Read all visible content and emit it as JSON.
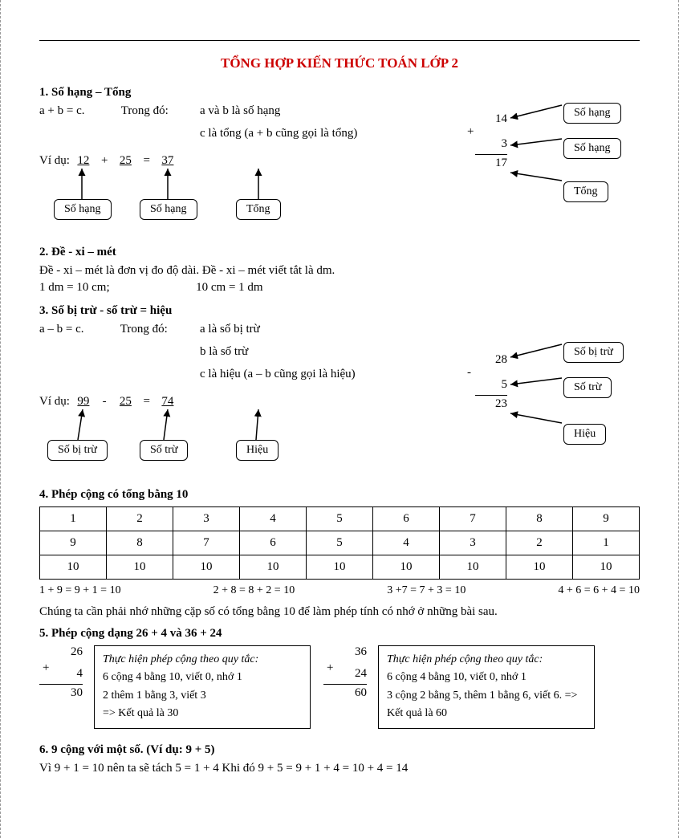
{
  "title": "TỔNG HỢP KIẾN THỨC TOÁN LỚP 2",
  "s1": {
    "heading": "1. Số hạng – Tổng",
    "eq": "a + b = c.",
    "where_lbl": "Trong đó:",
    "where1": "a và b là số hạng",
    "where2": "c là tổng (a + b cũng gọi là tổng)",
    "ex_lbl": "Ví dụ:",
    "v1": "12",
    "op1": "+",
    "v2": "25",
    "op2": "=",
    "v3": "37",
    "box1": "Số hạng",
    "box2": "Số hạng",
    "box3": "Tổng",
    "rv1": "14",
    "rop": "+",
    "rv2": "3",
    "rres": "17",
    "rbox1": "Số hạng",
    "rbox2": "Số hạng",
    "rbox3": "Tổng"
  },
  "s2": {
    "heading": "2. Đề - xi – mét",
    "line1": "Đề - xi – mét là đơn vị đo độ dài. Đề - xi – mét viết tắt là dm.",
    "line2a": "1 dm = 10 cm;",
    "line2b": "10 cm = 1 dm"
  },
  "s3": {
    "heading": "3. Số bị trừ - số trừ = hiệu",
    "eq": "a – b = c.",
    "where_lbl": "Trong đó:",
    "where1": "a là số bị trừ",
    "where2": "b là số trừ",
    "where3": "c là hiệu (a – b cũng gọi là hiệu)",
    "ex_lbl": "Ví dụ:",
    "v1": "99",
    "op1": "-",
    "v2": "25",
    "op2": "=",
    "v3": "74",
    "box1": "Số bị trừ",
    "box2": "Số trừ",
    "box3": "Hiệu",
    "rv1": "28",
    "rop": "-",
    "rv2": "5",
    "rres": "23",
    "rbox1": "Số bị trừ",
    "rbox2": "Số trừ",
    "rbox3": "Hiệu"
  },
  "s4": {
    "heading": "4. Phép cộng có tổng bằng 10",
    "rows": [
      [
        "1",
        "2",
        "3",
        "4",
        "5",
        "6",
        "7",
        "8",
        "9"
      ],
      [
        "9",
        "8",
        "7",
        "6",
        "5",
        "4",
        "3",
        "2",
        "1"
      ],
      [
        "10",
        "10",
        "10",
        "10",
        "10",
        "10",
        "10",
        "10",
        "10"
      ]
    ],
    "eqs": [
      "1 + 9 = 9 + 1 = 10",
      "2 + 8  = 8 + 2 = 10",
      "3 +7 = 7 + 3 = 10",
      "4 + 6 = 6 + 4 = 10"
    ],
    "note": "Chúng ta cần phải nhớ những cặp số có tổng bằng 10 để làm phép tính có nhớ ở những bài sau."
  },
  "s5": {
    "heading": "5. Phép cộng dạng 26 + 4 và 36 + 24",
    "left": {
      "a": "26",
      "op": "+",
      "b": "4",
      "res": "30",
      "t": "Thực hiện phép cộng theo quy tắc:",
      "l1": "6 cộng 4 bằng 10, viết 0, nhớ 1",
      "l2": "2 thêm 1 bằng 3, viết 3",
      "l3": "=> Kết quả là 30"
    },
    "right": {
      "a": "36",
      "op": "+",
      "b": "24",
      "res": "60",
      "t": "Thực hiện phép cộng theo quy tắc:",
      "l1": "6 cộng 4 bằng 10, viết 0, nhớ 1",
      "l2": "3 cộng 2 bằng 5, thêm 1 bằng 6, viết 6. => Kết quả là 60"
    }
  },
  "s6": {
    "heading": "6. 9 cộng với một số. (Ví dụ: 9 + 5)",
    "line": "Vì 9 + 1 = 10 nên ta sẽ tách 5 = 1 + 4  Khi đó 9 + 5 = 9 + 1 + 4 = 10 + 4 = 14"
  },
  "colors": {
    "title": "#cc0000",
    "border": "#000000",
    "bg": "#ffffff"
  }
}
